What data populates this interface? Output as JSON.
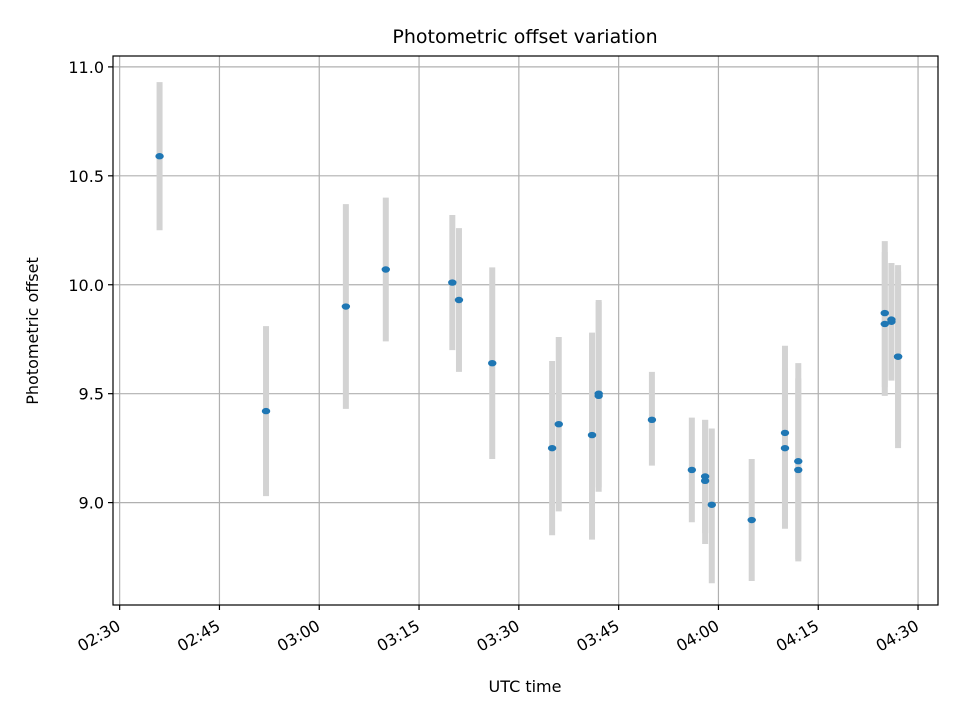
{
  "chart_data": {
    "type": "scatter",
    "title": "Photometric offset variation",
    "xlabel": "UTC time",
    "ylabel": "Photometric offset",
    "x_axis_kind": "time",
    "xlim": [
      "02:29",
      "04:33"
    ],
    "ylim": [
      8.53,
      11.05
    ],
    "x_ticks": [
      "02:30",
      "02:45",
      "03:00",
      "03:15",
      "03:30",
      "03:45",
      "04:00",
      "04:15",
      "04:30"
    ],
    "y_ticks": [
      9.0,
      9.5,
      10.0,
      10.5,
      11.0
    ],
    "y_tick_labels": [
      "9.0",
      "9.5",
      "10.0",
      "10.5",
      "11.0"
    ],
    "grid": true,
    "marker_color": "#1f77b4",
    "errorbar_color": "#d3d3d3",
    "points": [
      {
        "t": "02:36",
        "y": 10.59,
        "lo": 10.25,
        "hi": 10.93
      },
      {
        "t": "02:52",
        "y": 9.42,
        "lo": 9.03,
        "hi": 9.81
      },
      {
        "t": "03:04",
        "y": 9.9,
        "lo": 9.43,
        "hi": 10.37
      },
      {
        "t": "03:10",
        "y": 10.07,
        "lo": 9.74,
        "hi": 10.4
      },
      {
        "t": "03:20",
        "y": 10.01,
        "lo": 9.7,
        "hi": 10.32
      },
      {
        "t": "03:21",
        "y": 9.93,
        "lo": 9.6,
        "hi": 10.26
      },
      {
        "t": "03:26",
        "y": 9.64,
        "lo": 9.2,
        "hi": 10.08
      },
      {
        "t": "03:35",
        "y": 9.25,
        "lo": 8.85,
        "hi": 9.65
      },
      {
        "t": "03:36",
        "y": 9.36,
        "lo": 8.96,
        "hi": 9.76
      },
      {
        "t": "03:41",
        "y": 9.31,
        "lo": 8.83,
        "hi": 9.78
      },
      {
        "t": "03:42",
        "y": 9.49,
        "lo": 9.05,
        "hi": 9.92
      },
      {
        "t": "03:42",
        "y": 9.5,
        "lo": 9.07,
        "hi": 9.93
      },
      {
        "t": "03:50",
        "y": 9.38,
        "lo": 9.17,
        "hi": 9.6
      },
      {
        "t": "03:56",
        "y": 9.15,
        "lo": 8.91,
        "hi": 9.39
      },
      {
        "t": "03:58",
        "y": 9.12,
        "lo": 8.86,
        "hi": 9.38
      },
      {
        "t": "03:58",
        "y": 9.1,
        "lo": 8.81,
        "hi": 9.38
      },
      {
        "t": "03:59",
        "y": 8.99,
        "lo": 8.63,
        "hi": 9.34
      },
      {
        "t": "04:05",
        "y": 8.92,
        "lo": 8.64,
        "hi": 9.2
      },
      {
        "t": "04:10",
        "y": 9.25,
        "lo": 8.88,
        "hi": 9.62
      },
      {
        "t": "04:10",
        "y": 9.32,
        "lo": 8.92,
        "hi": 9.72
      },
      {
        "t": "04:12",
        "y": 9.15,
        "lo": 8.73,
        "hi": 9.57
      },
      {
        "t": "04:12",
        "y": 9.19,
        "lo": 8.74,
        "hi": 9.64
      },
      {
        "t": "04:25",
        "y": 9.82,
        "lo": 9.49,
        "hi": 10.15
      },
      {
        "t": "04:25",
        "y": 9.87,
        "lo": 9.53,
        "hi": 10.2
      },
      {
        "t": "04:26",
        "y": 9.83,
        "lo": 9.56,
        "hi": 10.1
      },
      {
        "t": "04:26",
        "y": 9.84,
        "lo": 9.57,
        "hi": 10.1
      },
      {
        "t": "04:27",
        "y": 9.67,
        "lo": 9.28,
        "hi": 10.06
      },
      {
        "t": "04:27",
        "y": 9.67,
        "lo": 9.25,
        "hi": 10.09
      }
    ]
  }
}
